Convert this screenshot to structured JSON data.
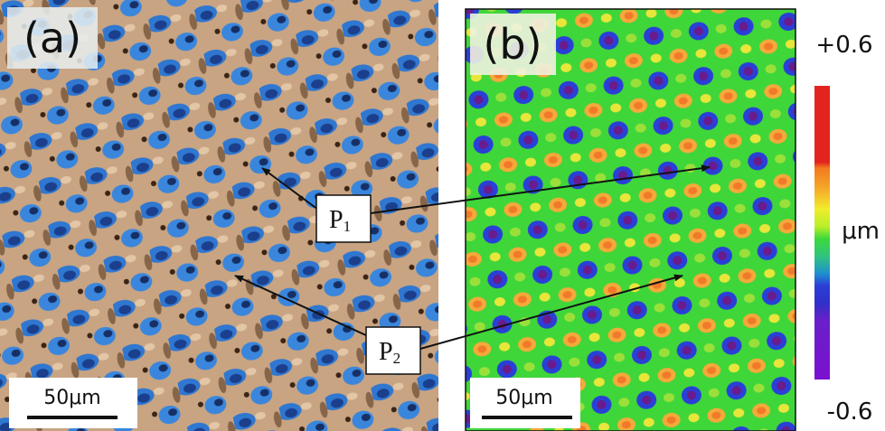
{
  "panels": [
    {
      "label": "(a)",
      "scale_bar": "50μm"
    },
    {
      "label": "(b)",
      "scale_bar": "50μm"
    }
  ],
  "points": [
    {
      "main": "P",
      "sub": "1"
    },
    {
      "main": "P",
      "sub": "2"
    }
  ],
  "colorbar": {
    "max_label": "+0.6",
    "min_label": "-0.6",
    "unit": "μm"
  }
}
